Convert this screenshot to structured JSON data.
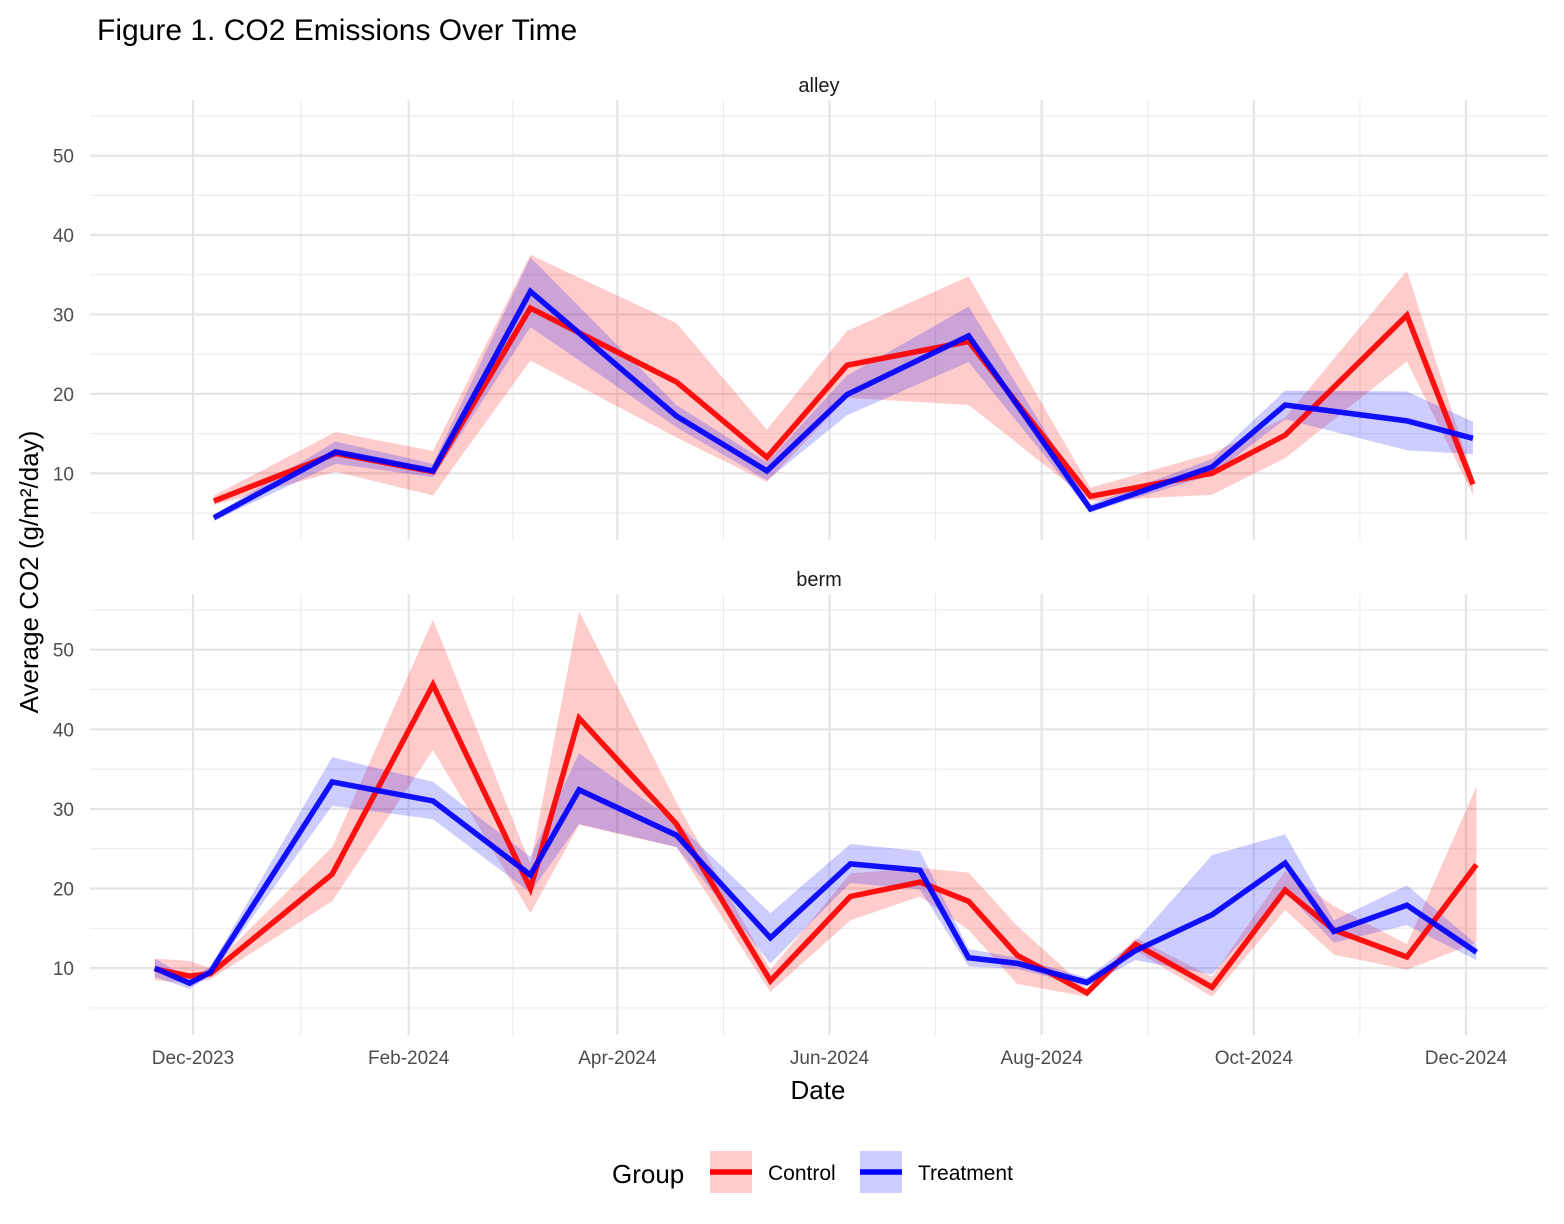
{
  "chart_data": {
    "type": "line",
    "title": "Figure 1. CO2 Emissions Over Time",
    "xlabel": "Date",
    "ylabel": "Average CO2 (g/m²/day)",
    "x_ticks": [
      {
        "date": "2023-12-01",
        "label": "Dec-2023"
      },
      {
        "date": "2024-02-01",
        "label": "Feb-2024"
      },
      {
        "date": "2024-04-01",
        "label": "Apr-2024"
      },
      {
        "date": "2024-06-01",
        "label": "Jun-2024"
      },
      {
        "date": "2024-08-01",
        "label": "Aug-2024"
      },
      {
        "date": "2024-10-01",
        "label": "Oct-2024"
      },
      {
        "date": "2024-12-01",
        "label": "Dec-2024"
      }
    ],
    "y_ticks": [
      10,
      20,
      30,
      40,
      50
    ],
    "xlim": [
      "2023-11-01",
      "2024-12-24"
    ],
    "ylim": [
      1.6,
      57
    ],
    "grid": true,
    "legend": {
      "title": "Group",
      "position": "bottom"
    },
    "colors": {
      "Control": "#ff0000",
      "Treatment": "#0000ff"
    },
    "panels": [
      {
        "name": "alley",
        "series": [
          {
            "name": "Control",
            "points": [
              {
                "x": "2023-12-07",
                "y": 6.5,
                "lo": 6.0,
                "hi": 7.2
              },
              {
                "x": "2024-01-11",
                "y": 12.5,
                "lo": 10.2,
                "hi": 15.2
              },
              {
                "x": "2024-02-08",
                "y": 10.2,
                "lo": 7.2,
                "hi": 12.8
              },
              {
                "x": "2024-03-07",
                "y": 30.8,
                "lo": 24.2,
                "hi": 37.5
              },
              {
                "x": "2024-04-18",
                "y": 21.5,
                "lo": 14.5,
                "hi": 28.9
              },
              {
                "x": "2024-05-14",
                "y": 12.0,
                "lo": 8.9,
                "hi": 15.5
              },
              {
                "x": "2024-06-06",
                "y": 23.6,
                "lo": 19.5,
                "hi": 27.9
              },
              {
                "x": "2024-07-11",
                "y": 26.6,
                "lo": 18.6,
                "hi": 34.8
              },
              {
                "x": "2024-08-15",
                "y": 7.1,
                "lo": 6.5,
                "hi": 8.2
              },
              {
                "x": "2024-09-19",
                "y": 10.0,
                "lo": 7.3,
                "hi": 12.5
              },
              {
                "x": "2024-10-10",
                "y": 14.8,
                "lo": 11.9,
                "hi": 17.0
              },
              {
                "x": "2024-11-14",
                "y": 29.9,
                "lo": 24.1,
                "hi": 35.5
              },
              {
                "x": "2024-12-03",
                "y": 8.6,
                "lo": 7.3,
                "hi": 9.6
              }
            ]
          },
          {
            "name": "Treatment",
            "points": [
              {
                "x": "2023-12-07",
                "y": 4.4,
                "lo": 4.0,
                "hi": 4.8
              },
              {
                "x": "2024-01-11",
                "y": 12.7,
                "lo": 11.2,
                "hi": 14.0
              },
              {
                "x": "2024-02-08",
                "y": 10.3,
                "lo": 9.5,
                "hi": 11.2
              },
              {
                "x": "2024-03-07",
                "y": 32.9,
                "lo": 28.4,
                "hi": 37.2
              },
              {
                "x": "2024-04-18",
                "y": 17.2,
                "lo": 15.8,
                "hi": 18.6
              },
              {
                "x": "2024-05-14",
                "y": 10.3,
                "lo": 9.1,
                "hi": 11.4
              },
              {
                "x": "2024-06-06",
                "y": 19.9,
                "lo": 17.3,
                "hi": 22.3
              },
              {
                "x": "2024-07-11",
                "y": 27.3,
                "lo": 24.0,
                "hi": 31.0
              },
              {
                "x": "2024-08-15",
                "y": 5.5,
                "lo": 5.1,
                "hi": 6.1
              },
              {
                "x": "2024-09-19",
                "y": 10.8,
                "lo": 9.8,
                "hi": 11.8
              },
              {
                "x": "2024-10-10",
                "y": 18.6,
                "lo": 16.8,
                "hi": 20.4
              },
              {
                "x": "2024-11-14",
                "y": 16.6,
                "lo": 12.9,
                "hi": 20.3
              },
              {
                "x": "2024-12-03",
                "y": 14.4,
                "lo": 12.4,
                "hi": 16.5
              }
            ]
          }
        ]
      },
      {
        "name": "berm",
        "series": [
          {
            "name": "Control",
            "points": [
              {
                "x": "2023-11-20",
                "y": 9.9,
                "lo": 8.5,
                "hi": 11.2
              },
              {
                "x": "2023-11-30",
                "y": 9.0,
                "lo": 8.1,
                "hi": 10.9
              },
              {
                "x": "2023-12-06",
                "y": 9.3,
                "lo": 8.6,
                "hi": 10.0
              },
              {
                "x": "2024-01-10",
                "y": 21.8,
                "lo": 18.4,
                "hi": 25.2
              },
              {
                "x": "2024-02-08",
                "y": 45.6,
                "lo": 37.4,
                "hi": 53.8
              },
              {
                "x": "2024-03-07",
                "y": 20.0,
                "lo": 16.9,
                "hi": 23.1
              },
              {
                "x": "2024-03-21",
                "y": 41.4,
                "lo": 28.0,
                "hi": 54.8
              },
              {
                "x": "2024-04-18",
                "y": 28.1,
                "lo": 25.2,
                "hi": 30.8
              },
              {
                "x": "2024-05-15",
                "y": 8.4,
                "lo": 7.0,
                "hi": 9.8
              },
              {
                "x": "2024-06-07",
                "y": 19.0,
                "lo": 16.0,
                "hi": 21.9
              },
              {
                "x": "2024-06-27",
                "y": 20.8,
                "lo": 19.0,
                "hi": 22.6
              },
              {
                "x": "2024-07-11",
                "y": 18.4,
                "lo": 14.8,
                "hi": 22.0
              },
              {
                "x": "2024-07-25",
                "y": 11.6,
                "lo": 8.0,
                "hi": 15.3
              },
              {
                "x": "2024-08-14",
                "y": 6.9,
                "lo": 6.4,
                "hi": 7.4
              },
              {
                "x": "2024-08-28",
                "y": 13.0,
                "lo": 12.2,
                "hi": 13.8
              },
              {
                "x": "2024-09-19",
                "y": 7.6,
                "lo": 6.4,
                "hi": 8.9
              },
              {
                "x": "2024-10-10",
                "y": 19.8,
                "lo": 17.3,
                "hi": 22.2
              },
              {
                "x": "2024-10-24",
                "y": 14.8,
                "lo": 11.7,
                "hi": 17.8
              },
              {
                "x": "2024-11-14",
                "y": 11.4,
                "lo": 9.8,
                "hi": 13.0
              },
              {
                "x": "2024-12-04",
                "y": 23.0,
                "lo": 13.2,
                "hi": 32.8
              }
            ]
          },
          {
            "name": "Treatment",
            "points": [
              {
                "x": "2023-11-20",
                "y": 10.0,
                "lo": 8.9,
                "hi": 11.2
              },
              {
                "x": "2023-11-30",
                "y": 8.1,
                "lo": 7.4,
                "hi": 8.7
              },
              {
                "x": "2023-12-06",
                "y": 9.5,
                "lo": 9.0,
                "hi": 10.2
              },
              {
                "x": "2024-01-10",
                "y": 33.4,
                "lo": 30.4,
                "hi": 36.5
              },
              {
                "x": "2024-02-08",
                "y": 31.0,
                "lo": 28.7,
                "hi": 33.4
              },
              {
                "x": "2024-03-07",
                "y": 21.7,
                "lo": 19.5,
                "hi": 24.0
              },
              {
                "x": "2024-03-21",
                "y": 32.4,
                "lo": 28.1,
                "hi": 37.0
              },
              {
                "x": "2024-04-18",
                "y": 26.7,
                "lo": 25.2,
                "hi": 28.3
              },
              {
                "x": "2024-05-15",
                "y": 13.8,
                "lo": 10.6,
                "hi": 16.9
              },
              {
                "x": "2024-06-07",
                "y": 23.1,
                "lo": 20.7,
                "hi": 25.6
              },
              {
                "x": "2024-06-27",
                "y": 22.3,
                "lo": 19.9,
                "hi": 24.7
              },
              {
                "x": "2024-07-11",
                "y": 11.3,
                "lo": 10.2,
                "hi": 12.4
              },
              {
                "x": "2024-07-25",
                "y": 10.6,
                "lo": 9.9,
                "hi": 11.3
              },
              {
                "x": "2024-08-14",
                "y": 8.2,
                "lo": 7.7,
                "hi": 8.8
              },
              {
                "x": "2024-08-28",
                "y": 12.2,
                "lo": 11.0,
                "hi": 13.4
              },
              {
                "x": "2024-09-19",
                "y": 16.7,
                "lo": 9.2,
                "hi": 24.2
              },
              {
                "x": "2024-10-10",
                "y": 23.2,
                "lo": 19.6,
                "hi": 26.8
              },
              {
                "x": "2024-10-24",
                "y": 14.6,
                "lo": 13.2,
                "hi": 16.0
              },
              {
                "x": "2024-11-14",
                "y": 17.9,
                "lo": 15.4,
                "hi": 20.4
              },
              {
                "x": "2024-12-04",
                "y": 12.0,
                "lo": 11.0,
                "hi": 13.0
              }
            ]
          }
        ]
      }
    ]
  }
}
